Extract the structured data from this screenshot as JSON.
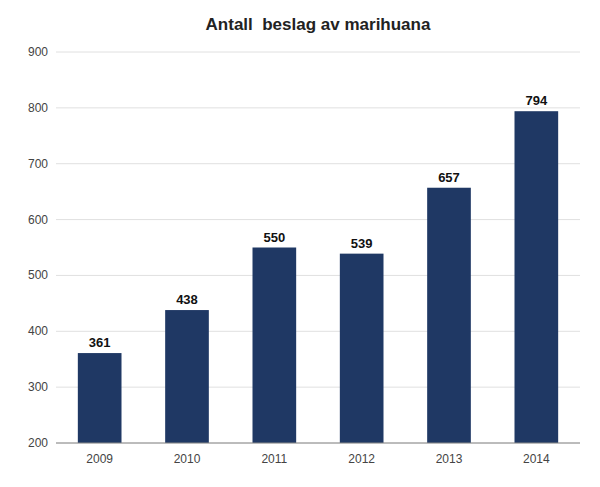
{
  "chart_data": {
    "type": "bar",
    "title": "Antall  beslag av marihuana",
    "categories": [
      "2009",
      "2010",
      "2011",
      "2012",
      "2013",
      "2014"
    ],
    "values": [
      361,
      438,
      550,
      539,
      657,
      794
    ],
    "color": "#1F3864",
    "ylim": [
      200,
      900
    ],
    "yticks": [
      200,
      300,
      400,
      500,
      600,
      700,
      800,
      900
    ],
    "grid": true,
    "data_labels": true
  }
}
